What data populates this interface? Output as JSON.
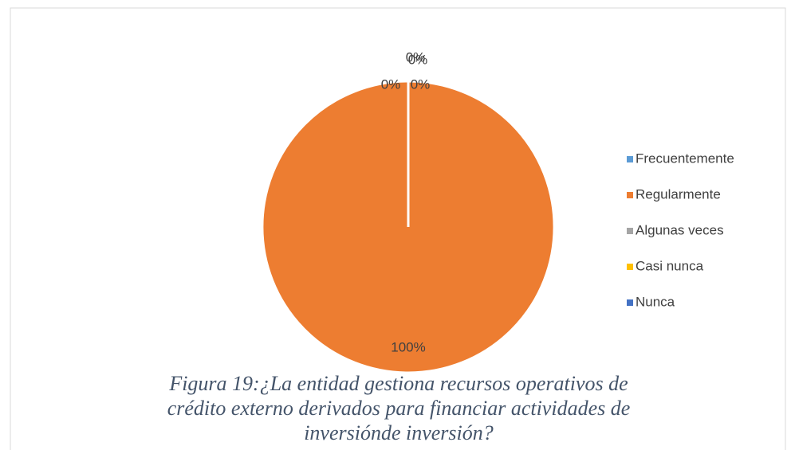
{
  "chart_data": {
    "type": "pie",
    "categories": [
      "Frecuentemente",
      "Regularmente",
      "Algunas veces",
      "Casi nunca",
      "Nunca"
    ],
    "values": [
      0,
      100,
      0,
      0,
      0
    ],
    "value_labels": [
      "0%",
      "100%",
      "0%",
      "0%",
      "0%"
    ],
    "colors": [
      "#5b9bd5",
      "#ed7d31",
      "#a5a5a5",
      "#ffc000",
      "#4472c4"
    ],
    "legend": "right",
    "caption": [
      "Figura 19:¿La entidad gestiona recursos operativos de",
      "crédito externo derivados para financiar actividades de",
      "inversiónde inversión?"
    ]
  }
}
